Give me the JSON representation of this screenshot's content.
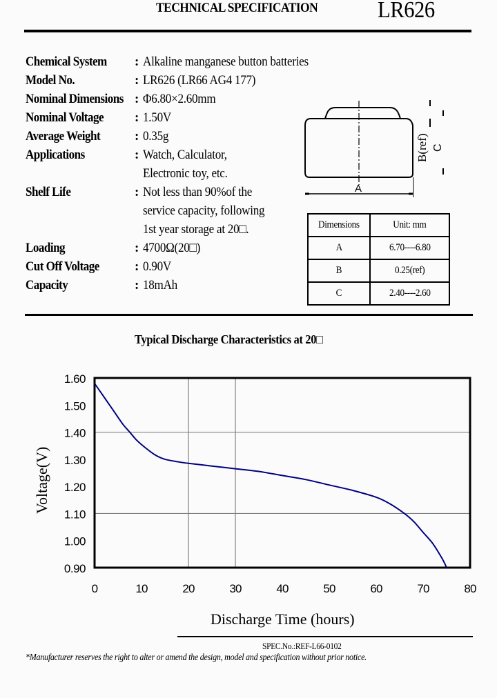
{
  "header": {
    "title": "TECHNICAL SPECIFICATION",
    "model": "LR626"
  },
  "specs": [
    {
      "label": "Chemical System",
      "colon": ":",
      "value": [
        "Alkaline manganese button batteries"
      ]
    },
    {
      "label": "Model No.",
      "colon": ":",
      "value": [
        "LR626 (LR66 AG4 177)"
      ]
    },
    {
      "label": "Nominal Dimensions",
      "colon": ":",
      "value": [
        "Φ6.80×2.60mm"
      ]
    },
    {
      "label": "Nominal Voltage",
      "colon": ":",
      "value": [
        "1.50V"
      ]
    },
    {
      "label": "Average Weight",
      "colon": ":",
      "value": [
        "0.35g"
      ]
    },
    {
      "label": "Applications",
      "colon": ":",
      "value": [
        "Watch, Calculator,",
        "Electronic toy, etc."
      ]
    },
    {
      "label": "Shelf Life",
      "colon": ":",
      "value": [
        "Not less than 90%of the",
        "service capacity, following",
        "1st year storage at 20□."
      ]
    },
    {
      "label": "Loading",
      "colon": ":",
      "value": [
        "4700Ω(20□)"
      ]
    },
    {
      "label": "Cut Off Voltage",
      "colon": ":",
      "value": [
        "0.90V"
      ]
    },
    {
      "label": "Capacity",
      "colon": ":",
      "value": [
        "18mAh"
      ]
    }
  ],
  "diagram": {
    "label_a": "A",
    "label_b": "B(ref)",
    "label_c": "C"
  },
  "dimensions_table": {
    "headers": [
      "Dimensions",
      "Unit: mm"
    ],
    "rows": [
      [
        "A",
        "6.70----6.80"
      ],
      [
        "B",
        "0.25(ref)"
      ],
      [
        "C",
        "2.40----2.60"
      ]
    ]
  },
  "chart_title": "Typical Discharge Characteristics at 20□",
  "chart_data": {
    "type": "line",
    "title": "Typical Discharge Characteristics at 20□",
    "xlabel": "Discharge Time (hours)",
    "ylabel": "Voltage(V)",
    "xlim": [
      0,
      80
    ],
    "ylim": [
      0.9,
      1.6
    ],
    "x_ticks": [
      "0",
      "10",
      "20",
      "30",
      "40",
      "50",
      "60",
      "70",
      "80"
    ],
    "y_ticks": [
      "1.60",
      "1.50",
      "1.40",
      "1.30",
      "1.20",
      "1.10",
      "1.00",
      "0.90"
    ],
    "grid": {
      "vertical_at": [
        20,
        30
      ],
      "horizontal_at": [
        1.4,
        1.1
      ]
    },
    "legend": "none",
    "line_color": "#000080",
    "series": [
      {
        "name": "Voltage",
        "x": [
          0,
          2,
          4,
          6,
          7.5,
          9,
          11,
          13,
          15,
          18,
          20,
          25,
          30,
          35,
          40,
          45,
          50,
          55,
          60,
          63,
          66,
          68,
          70,
          72,
          74,
          75
        ],
        "values": [
          1.58,
          1.53,
          1.48,
          1.43,
          1.4,
          1.37,
          1.34,
          1.315,
          1.3,
          1.29,
          1.285,
          1.275,
          1.265,
          1.255,
          1.24,
          1.225,
          1.205,
          1.185,
          1.16,
          1.135,
          1.1,
          1.07,
          1.03,
          0.99,
          0.935,
          0.9
        ]
      }
    ]
  },
  "footer": {
    "spec_no": "SPEC.No.:REF-L66-0102",
    "disclaimer": "*Manufacturer reserves the right to alter or amend the design, model and specification without prior notice."
  }
}
